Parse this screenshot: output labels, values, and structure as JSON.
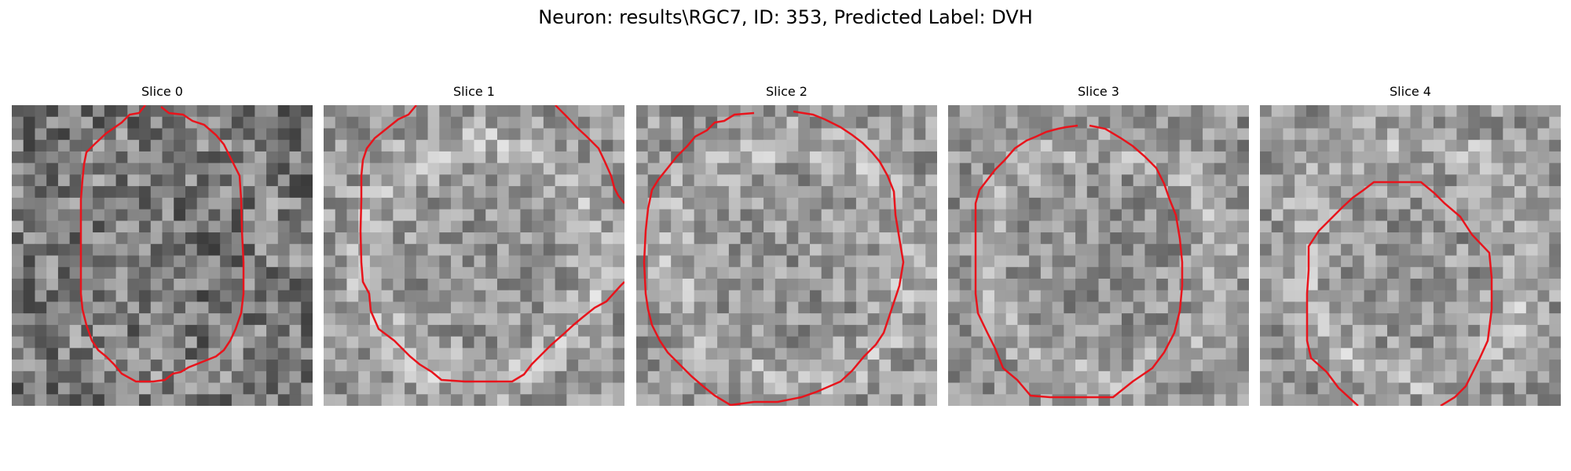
{
  "figure": {
    "title": "Neuron: results\\RGC7, ID: 353, Predicted Label: DVH"
  },
  "panels": [
    {
      "title": "Slice 0"
    },
    {
      "title": "Slice 1"
    },
    {
      "title": "Slice 2"
    },
    {
      "title": "Slice 3"
    },
    {
      "title": "Slice 4"
    }
  ],
  "style": {
    "contour_color": "#e8141c",
    "image_colormap": "gray"
  }
}
